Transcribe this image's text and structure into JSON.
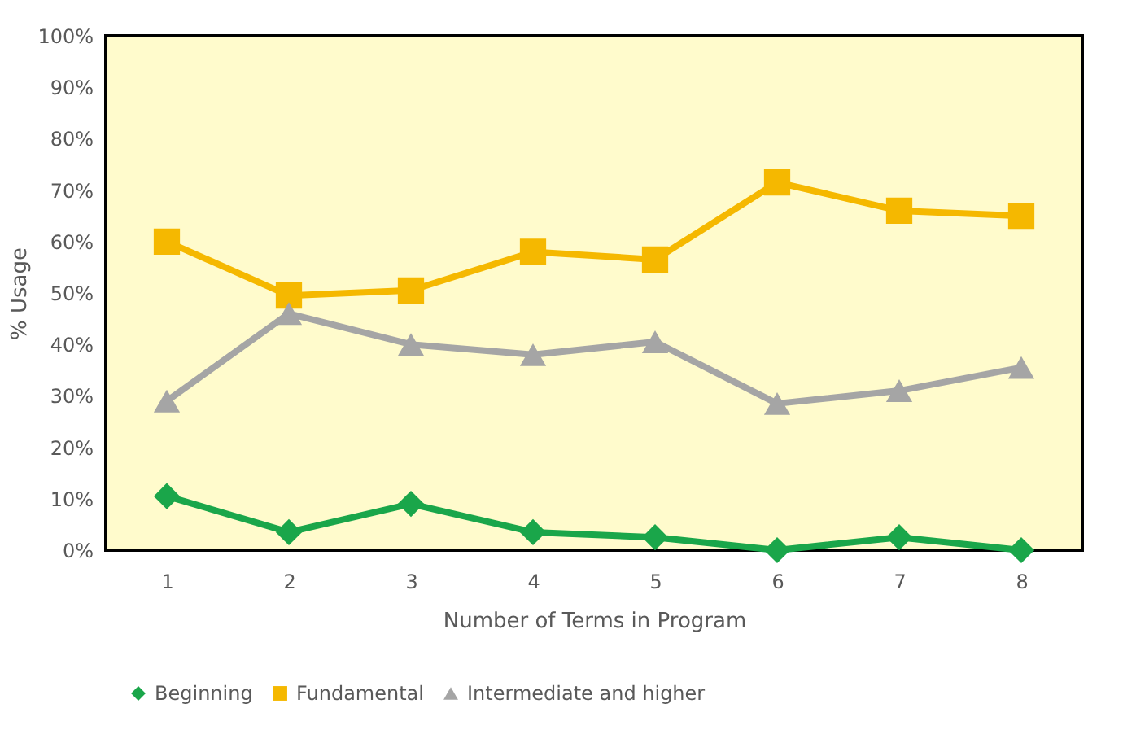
{
  "chart_data": {
    "type": "line",
    "xlabel": "Number  of Terms in Program",
    "ylabel": "% Usage",
    "categories": [
      "1",
      "2",
      "3",
      "4",
      "5",
      "6",
      "7",
      "8"
    ],
    "series": [
      {
        "name": "Beginning",
        "color": "#1aa64a",
        "marker": "diamond",
        "values": [
          10.5,
          3.5,
          9,
          3.5,
          2.5,
          0,
          2.5,
          0
        ]
      },
      {
        "name": "Fundamental",
        "color": "#f5b800",
        "marker": "square",
        "values": [
          60,
          49.5,
          50.5,
          58,
          56.5,
          71.5,
          66,
          65
        ]
      },
      {
        "name": "Intermediate and higher",
        "color": "#a5a5a5",
        "marker": "triangle",
        "values": [
          29,
          46,
          40,
          38,
          40.5,
          28.5,
          31,
          35.5
        ]
      }
    ],
    "ylim": [
      0,
      100
    ],
    "yticks": [
      {
        "value": 0,
        "label": "0%"
      },
      {
        "value": 10,
        "label": "10%"
      },
      {
        "value": 20,
        "label": "20%"
      },
      {
        "value": 30,
        "label": "30%"
      },
      {
        "value": 40,
        "label": "40%"
      },
      {
        "value": 50,
        "label": "50%"
      },
      {
        "value": 60,
        "label": "60%"
      },
      {
        "value": 70,
        "label": "70%"
      },
      {
        "value": 80,
        "label": "80%"
      },
      {
        "value": 90,
        "label": "90%"
      },
      {
        "value": 100,
        "label": "100%"
      }
    ],
    "grid": false,
    "legend": "bottom",
    "line_style": "solid"
  }
}
